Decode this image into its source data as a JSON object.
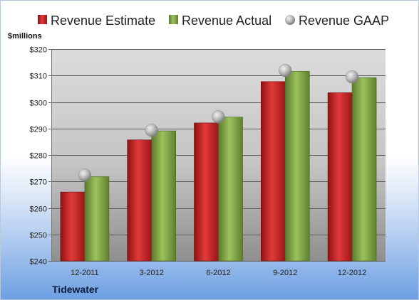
{
  "company": "Tidewater",
  "chart_data": {
    "type": "bar",
    "ylabel": "$millions",
    "categories": [
      "12-2011",
      "3-2012",
      "6-2012",
      "9-2012",
      "12-2012"
    ],
    "ylim": [
      240,
      320
    ],
    "yticks": [
      240,
      250,
      260,
      270,
      280,
      290,
      300,
      310,
      320
    ],
    "ytick_labels": [
      "$240",
      "$250",
      "$260",
      "$270",
      "$280",
      "$290",
      "$300",
      "$310",
      "$320"
    ],
    "legend_position": "top",
    "grid": true,
    "series": [
      {
        "name": "Revenue Estimate",
        "kind": "bar",
        "color": "#cc2222",
        "values": [
          266.0,
          285.7,
          292.1,
          307.7,
          303.5
        ]
      },
      {
        "name": "Revenue Actual",
        "kind": "bar",
        "color": "#7fa246",
        "values": [
          271.8,
          289.1,
          294.3,
          311.6,
          309.2
        ]
      },
      {
        "name": "Revenue GAAP",
        "kind": "marker",
        "color": "#a8a8a8",
        "values": [
          272.4,
          289.3,
          294.4,
          311.9,
          309.5
        ]
      }
    ]
  }
}
